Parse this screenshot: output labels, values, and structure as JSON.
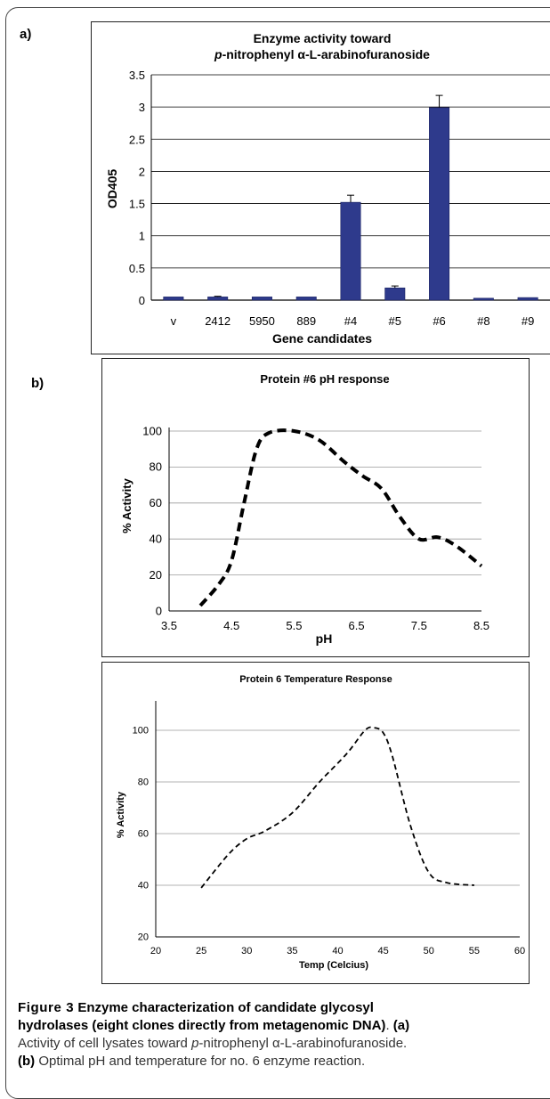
{
  "panels": {
    "a": "a)",
    "b": "b)"
  },
  "chart_data": [
    {
      "type": "bar",
      "title_line1": "Enzyme activity toward",
      "title_line2_italic": "p",
      "title_line2_rest": "-nitrophenyl α-L-arabinofuranoside",
      "xlabel": "Gene candidates",
      "ylabel": "OD405",
      "categories": [
        "v",
        "2412",
        "5950",
        "889",
        "#4",
        "#5",
        "#6",
        "#8",
        "#9"
      ],
      "values": [
        0.05,
        0.05,
        0.05,
        0.05,
        1.52,
        0.19,
        2.99,
        0.03,
        0.04
      ],
      "errors": [
        0,
        0.01,
        0,
        0,
        0.11,
        0.03,
        0.19,
        0,
        0
      ],
      "ylim": [
        0,
        3.5
      ],
      "yticks": [
        "0",
        "0.5",
        "1",
        "1.5",
        "2",
        "2.5",
        "3",
        "3.5"
      ],
      "grid": true,
      "bar_color": "#2e3a8c"
    },
    {
      "type": "line",
      "title": "Protein #6 pH response",
      "xlabel": "pH",
      "ylabel": "% Activity",
      "x": [
        4.0,
        4.3,
        4.5,
        4.7,
        4.9,
        5.1,
        5.5,
        5.9,
        6.3,
        6.6,
        6.9,
        7.2,
        7.5,
        7.8,
        8.1,
        8.5
      ],
      "y": [
        3,
        15,
        28,
        60,
        90,
        99,
        100,
        95,
        83,
        75,
        68,
        52,
        40,
        41,
        36,
        25
      ],
      "xlim": [
        3.5,
        8.5
      ],
      "ylim": [
        0,
        100
      ],
      "xticks": [
        "3.5",
        "4.5",
        "5.5",
        "6.5",
        "7.5",
        "8.5"
      ],
      "yticks": [
        "0",
        "20",
        "40",
        "60",
        "80",
        "100"
      ],
      "grid": true,
      "line_style": "dashed"
    },
    {
      "type": "line",
      "title": "Protein 6 Temperature Response",
      "xlabel": "Temp (Celcius)",
      "ylabel": "% Activity",
      "x": [
        25,
        28,
        30,
        32,
        35,
        38,
        41,
        43,
        44,
        45,
        46,
        48,
        50,
        52,
        55
      ],
      "y": [
        39,
        52,
        58,
        61,
        68,
        80,
        91,
        100,
        101,
        99,
        90,
        63,
        45,
        41,
        40
      ],
      "xlim": [
        20,
        60
      ],
      "ylim": [
        20,
        110
      ],
      "xticks": [
        "20",
        "25",
        "30",
        "35",
        "40",
        "45",
        "50",
        "55",
        "60"
      ],
      "yticks": [
        "20",
        "40",
        "60",
        "80",
        "100"
      ],
      "grid": true,
      "line_style": "dashed"
    }
  ],
  "caption": {
    "figure_label": "Figure 3",
    "title_part1": "Enzyme characterization of candidate glycosyl",
    "title_part2": "hydrolases (eight clones directly from metagenomic DNA)",
    "title_end": ".",
    "a_label": "(a)",
    "a_text_1": "Activity of cell lysates toward",
    "a_text_italic": "p",
    "a_text_2": "-nitrophenyl α-L-arabinofuranoside.",
    "b_label": "(b)",
    "b_text": "Optimal pH and temperature for no. 6 enzyme reaction."
  }
}
